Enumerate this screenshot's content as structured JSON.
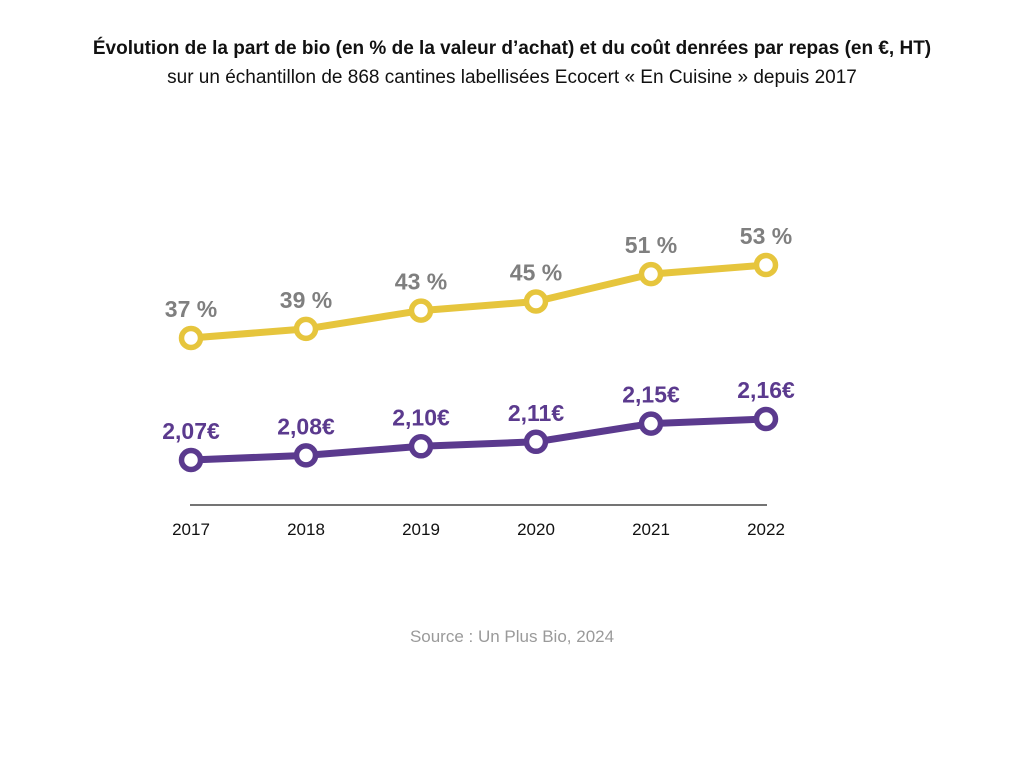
{
  "header": {
    "title": "Évolution de la part de bio (en % de la valeur d’achat) et du coût denrées par repas (en €, HT)",
    "subtitle": "sur un échantillon de 868 cantines labellisées Ecocert « En Cuisine » depuis 2017"
  },
  "footer": {
    "source": "Source : Un Plus Bio, 2024"
  },
  "chart_data": {
    "type": "line",
    "x": [
      "2017",
      "2018",
      "2019",
      "2020",
      "2021",
      "2022"
    ],
    "grid": false,
    "legend": "none",
    "series": [
      {
        "key": "bio",
        "values": [
          37,
          39,
          43,
          45,
          51,
          53
        ],
        "labels": [
          "37 %",
          "39 %",
          "43 %",
          "45 %",
          "51 %",
          "53 %"
        ],
        "color": "#e6c53d",
        "label_color": "#7f7f7f"
      },
      {
        "key": "cost",
        "values": [
          2.07,
          2.08,
          2.1,
          2.11,
          2.15,
          2.16
        ],
        "labels": [
          "2,07€",
          "2,08€",
          "2,10€",
          "2,11€",
          "2,15€",
          "2,16€"
        ],
        "color": "#5b3a8e",
        "label_color": "#5b3a8e"
      }
    ]
  }
}
